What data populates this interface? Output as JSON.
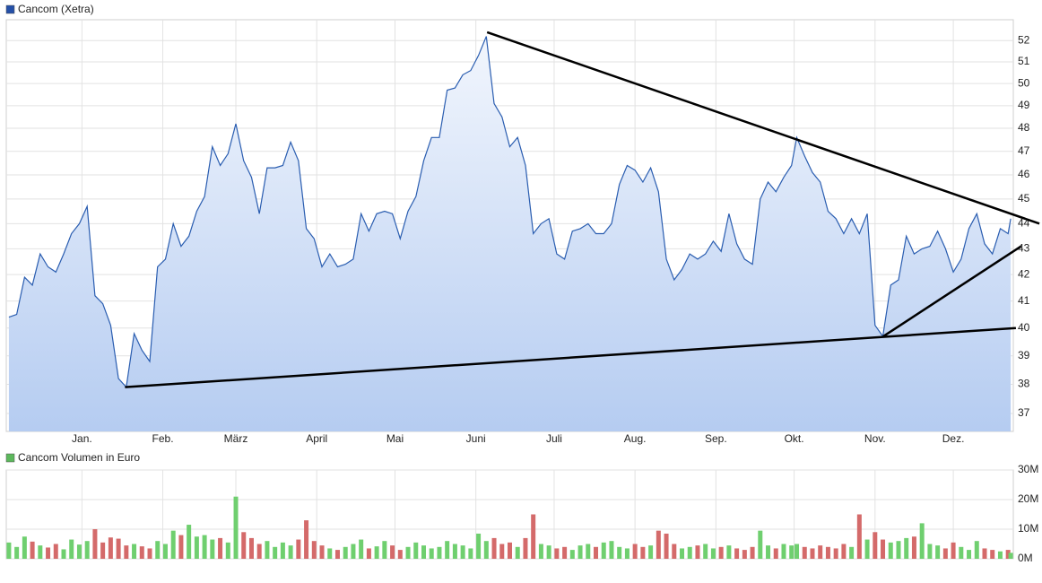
{
  "chart_data": [
    {
      "type": "line",
      "title": "Cancom (Xetra)",
      "color": "#2a5db0",
      "legend_color": "#2450a8",
      "fill_top": "#f2f6fd",
      "fill_bottom": "#b5ccf1",
      "log_scale": true,
      "grid": true,
      "xlim": [
        -29,
        357
      ],
      "xticks": [
        {
          "value": 0,
          "label": "Jan."
        },
        {
          "value": 31,
          "label": "Feb."
        },
        {
          "value": 59,
          "label": "März"
        },
        {
          "value": 90,
          "label": "April"
        },
        {
          "value": 120,
          "label": "Mai"
        },
        {
          "value": 151,
          "label": "Juni"
        },
        {
          "value": 181,
          "label": "Juli"
        },
        {
          "value": 212,
          "label": "Aug."
        },
        {
          "value": 243,
          "label": "Sep."
        },
        {
          "value": 273,
          "label": "Okt."
        },
        {
          "value": 304,
          "label": "Nov."
        },
        {
          "value": 334,
          "label": "Dez."
        }
      ],
      "ylim": [
        36.4,
        53.0
      ],
      "yticks": [
        37,
        38,
        39,
        40,
        41,
        42,
        43,
        44,
        45,
        46,
        47,
        48,
        49,
        50,
        51,
        52
      ],
      "x": [
        -28,
        -25,
        -22,
        -19,
        -16,
        -13,
        -10,
        -7,
        -4,
        -1,
        2,
        5,
        8,
        11,
        14,
        17,
        20,
        23,
        26,
        29,
        32,
        35,
        38,
        41,
        44,
        47,
        50,
        53,
        56,
        59,
        62,
        65,
        68,
        71,
        74,
        77,
        80,
        83,
        86,
        89,
        92,
        95,
        98,
        101,
        104,
        107,
        110,
        113,
        116,
        119,
        122,
        125,
        128,
        131,
        134,
        137,
        140,
        143,
        146,
        149,
        152,
        155,
        158,
        161,
        164,
        167,
        170,
        173,
        176,
        179,
        182,
        185,
        188,
        191,
        194,
        197,
        200,
        203,
        206,
        209,
        212,
        215,
        218,
        221,
        224,
        227,
        230,
        233,
        236,
        239,
        242,
        245,
        248,
        251,
        254,
        257,
        260,
        263,
        266,
        269,
        272,
        274,
        277,
        280,
        283,
        286,
        289,
        292,
        295,
        298,
        301,
        304,
        307,
        310,
        313,
        316,
        319,
        322,
        325,
        328,
        331,
        334,
        337,
        340,
        343,
        346,
        349,
        352,
        355,
        356
      ],
      "values": [
        40.4,
        40.5,
        41.9,
        41.6,
        42.8,
        42.3,
        42.1,
        42.8,
        43.6,
        44.0,
        44.7,
        41.2,
        40.9,
        40.1,
        38.2,
        37.9,
        39.8,
        39.2,
        38.8,
        42.3,
        42.6,
        44.0,
        43.1,
        43.5,
        44.5,
        45.1,
        47.2,
        46.4,
        46.9,
        48.2,
        46.6,
        45.9,
        44.4,
        46.3,
        46.3,
        46.4,
        47.4,
        46.6,
        43.8,
        43.4,
        42.3,
        42.8,
        42.3,
        42.4,
        42.6,
        44.4,
        43.7,
        44.4,
        44.5,
        44.4,
        43.4,
        44.5,
        45.1,
        46.6,
        47.6,
        47.6,
        49.7,
        49.8,
        50.4,
        50.6,
        51.3,
        52.2,
        49.1,
        48.5,
        47.2,
        47.6,
        46.4,
        43.6,
        44.0,
        44.2,
        42.8,
        42.6,
        43.7,
        43.8,
        44.0,
        43.6,
        43.6,
        44.0,
        45.6,
        46.4,
        46.2,
        45.7,
        46.3,
        45.3,
        42.6,
        41.8,
        42.2,
        42.8,
        42.6,
        42.8,
        43.3,
        42.9,
        44.4,
        43.2,
        42.6,
        42.4,
        45.0,
        45.7,
        45.3,
        45.9,
        46.4,
        47.6,
        46.8,
        46.1,
        45.7,
        44.5,
        44.2,
        43.6,
        44.2,
        43.6,
        44.4,
        40.1,
        39.7,
        41.6,
        41.8,
        43.5,
        42.8,
        43.0,
        43.1,
        43.7,
        43.0,
        42.1,
        42.6,
        43.8,
        44.4,
        43.2,
        42.8,
        43.8,
        43.6,
        44.2
      ],
      "trend_lines": [
        {
          "x": [
            16.5,
            358
          ],
          "y": [
            37.9,
            40.0
          ]
        },
        {
          "x": [
            155.3,
            367
          ],
          "y": [
            52.4,
            44.0
          ]
        },
        {
          "x": [
            307.2,
            360
          ],
          "y": [
            39.7,
            43.1
          ]
        }
      ],
      "trend_color": "#000000"
    },
    {
      "type": "bar",
      "title": "Cancom Volumen in Euro",
      "legend_color": "#5cb85c",
      "up_color": "#6fcf6f",
      "down_color": "#d46a6a",
      "grid": true,
      "xlim": [
        -29,
        357
      ],
      "ylim": [
        0,
        30000000
      ],
      "yticks": [
        {
          "value": 0,
          "label": "0M"
        },
        {
          "value": 10000000,
          "label": "10M"
        },
        {
          "value": 20000000,
          "label": "20M"
        },
        {
          "value": 30000000,
          "label": "30M"
        }
      ],
      "values": [
        5500000,
        4000000,
        7500000,
        5800000,
        4500000,
        3800000,
        5000000,
        3200000,
        6500000,
        4800000,
        6000000,
        10000000,
        5500000,
        7200000,
        6800000,
        4500000,
        5000000,
        4200000,
        3500000,
        6000000,
        5000000,
        9500000,
        8000000,
        11500000,
        7500000,
        8000000,
        6500000,
        7000000,
        5500000,
        21000000,
        9000000,
        7000000,
        5000000,
        6000000,
        4000000,
        5500000,
        4500000,
        6500000,
        13000000,
        6000000,
        4500000,
        3500000,
        3000000,
        4000000,
        5000000,
        6500000,
        3500000,
        4200000,
        6000000,
        4500000,
        3000000,
        4000000,
        5500000,
        4500000,
        3500000,
        4000000,
        6000000,
        5000000,
        4500000,
        3500000,
        8500000,
        6000000,
        7000000,
        5000000,
        5500000,
        4000000,
        7000000,
        15000000,
        5000000,
        4500000,
        3500000,
        4000000,
        3000000,
        4500000,
        5000000,
        4000000,
        5500000,
        6000000,
        4000000,
        3500000,
        5000000,
        4000000,
        4500000,
        9500000,
        8500000,
        5000000,
        3500000,
        4000000,
        4500000,
        5000000,
        3500000,
        4000000,
        4500000,
        3500000,
        3000000,
        4000000,
        9500000,
        4500000,
        3500000,
        5000000,
        4500000,
        5000000,
        4000000,
        3500000,
        4500000,
        4000000,
        3500000,
        5000000,
        4000000,
        15000000,
        6500000,
        9000000,
        6500000,
        5500000,
        6000000,
        7000000,
        7500000,
        12000000,
        5000000,
        4500000,
        3500000,
        5500000,
        4000000,
        3000000,
        6000000,
        3500000,
        3000000,
        2500000,
        3000000,
        2000000
      ]
    }
  ]
}
